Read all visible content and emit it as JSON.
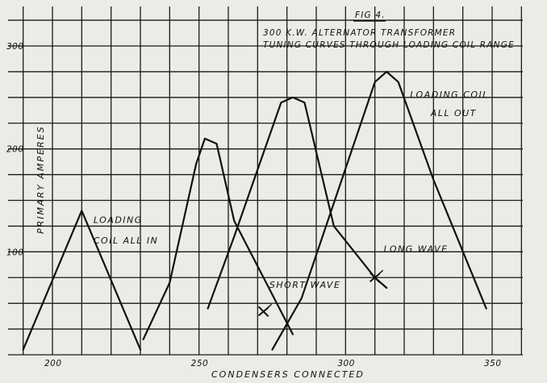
{
  "chart_data": {
    "type": "line",
    "figure_label": "FIG 4.",
    "title_line1": "300 K.W. ALTERNATOR TRANSFORMER",
    "title_line2": "TUNING CURVES THROUGH LOADING COIL RANGE",
    "xlabel": "CONDENSERS CONNECTED",
    "ylabel": "PRIMARY AMPERES",
    "x_ticks": [
      200,
      250,
      300,
      350
    ],
    "y_ticks": [
      100,
      200,
      300
    ],
    "xlim": [
      190,
      360
    ],
    "ylim": [
      0,
      310
    ],
    "grid": true,
    "series": [
      {
        "name": "LOADING COIL ALL IN",
        "x": [
          190,
          210,
          230
        ],
        "y": [
          5,
          140,
          5
        ]
      },
      {
        "name": "SHORT WAVE",
        "x": [
          231,
          240,
          249,
          252,
          256,
          262,
          272,
          282
        ],
        "y": [
          15,
          70,
          185,
          210,
          205,
          130,
          75,
          20
        ]
      },
      {
        "name": "LONG WAVE",
        "x": [
          253,
          262,
          278,
          282,
          286,
          296,
          310,
          314
        ],
        "y": [
          45,
          115,
          245,
          250,
          245,
          125,
          75,
          65
        ]
      },
      {
        "name": "LOADING COIL ALL OUT",
        "x": [
          275,
          285,
          310,
          314,
          318,
          330,
          348
        ],
        "y": [
          5,
          55,
          265,
          275,
          265,
          170,
          45
        ]
      }
    ],
    "annotations": [
      {
        "text": "LOADING",
        "x": 214,
        "y": 128
      },
      {
        "text": "COIL ALL IN",
        "x": 214,
        "y": 108
      },
      {
        "text": "SHORT WAVE",
        "x": 274,
        "y": 65
      },
      {
        "text": "LONG WAVE",
        "x": 313,
        "y": 100
      },
      {
        "text": "LOADING COIL",
        "x": 322,
        "y": 250
      },
      {
        "text": "ALL OUT",
        "x": 329,
        "y": 232
      }
    ],
    "marks": [
      {
        "x": 272,
        "y": 42
      },
      {
        "x": 310,
        "y": 75
      }
    ]
  }
}
